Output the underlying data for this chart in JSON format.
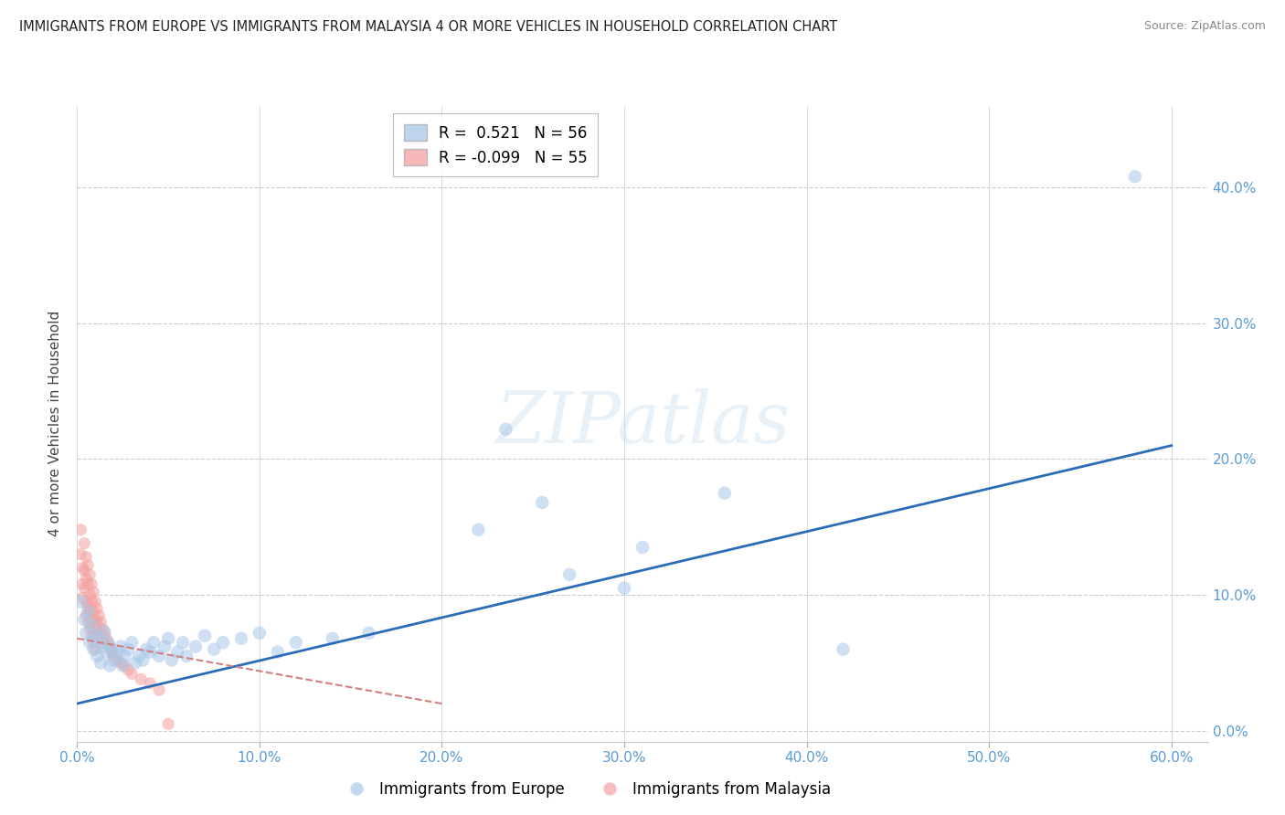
{
  "title": "IMMIGRANTS FROM EUROPE VS IMMIGRANTS FROM MALAYSIA 4 OR MORE VEHICLES IN HOUSEHOLD CORRELATION CHART",
  "source": "Source: ZipAtlas.com",
  "ylabel": "4 or more Vehicles in Household",
  "xlim": [
    0.0,
    0.62
  ],
  "ylim": [
    -0.008,
    0.46
  ],
  "xticks": [
    0.0,
    0.1,
    0.2,
    0.3,
    0.4,
    0.5,
    0.6
  ],
  "xtick_labels": [
    "0.0%",
    "10.0%",
    "20.0%",
    "30.0%",
    "40.0%",
    "50.0%",
    "60.0%"
  ],
  "yticks": [
    0.0,
    0.1,
    0.2,
    0.3,
    0.4
  ],
  "ytick_labels": [
    "0.0%",
    "10.0%",
    "20.0%",
    "30.0%",
    "40.0%"
  ],
  "legend_europe_r": "0.521",
  "legend_europe_n": "56",
  "legend_malaysia_r": "-0.099",
  "legend_malaysia_n": "55",
  "europe_color": "#a8c8e8",
  "malaysia_color": "#f4a0a0",
  "europe_line_color": "#2b6cb8",
  "malaysia_line_color": "#d08080",
  "tick_color": "#5b9bd5",
  "watermark": "ZIPatlas",
  "blue_scatter": [
    [
      0.002,
      0.095
    ],
    [
      0.004,
      0.082
    ],
    [
      0.005,
      0.072
    ],
    [
      0.006,
      0.088
    ],
    [
      0.007,
      0.065
    ],
    [
      0.008,
      0.078
    ],
    [
      0.009,
      0.06
    ],
    [
      0.01,
      0.07
    ],
    [
      0.011,
      0.055
    ],
    [
      0.012,
      0.068
    ],
    [
      0.013,
      0.05
    ],
    [
      0.014,
      0.062
    ],
    [
      0.015,
      0.073
    ],
    [
      0.016,
      0.058
    ],
    [
      0.017,
      0.065
    ],
    [
      0.018,
      0.048
    ],
    [
      0.019,
      0.06
    ],
    [
      0.02,
      0.052
    ],
    [
      0.022,
      0.057
    ],
    [
      0.024,
      0.062
    ],
    [
      0.025,
      0.048
    ],
    [
      0.026,
      0.055
    ],
    [
      0.028,
      0.06
    ],
    [
      0.03,
      0.065
    ],
    [
      0.032,
      0.05
    ],
    [
      0.034,
      0.055
    ],
    [
      0.036,
      0.052
    ],
    [
      0.038,
      0.06
    ],
    [
      0.04,
      0.058
    ],
    [
      0.042,
      0.065
    ],
    [
      0.045,
      0.055
    ],
    [
      0.048,
      0.062
    ],
    [
      0.05,
      0.068
    ],
    [
      0.052,
      0.052
    ],
    [
      0.055,
      0.058
    ],
    [
      0.058,
      0.065
    ],
    [
      0.06,
      0.055
    ],
    [
      0.065,
      0.062
    ],
    [
      0.07,
      0.07
    ],
    [
      0.075,
      0.06
    ],
    [
      0.08,
      0.065
    ],
    [
      0.09,
      0.068
    ],
    [
      0.1,
      0.072
    ],
    [
      0.11,
      0.058
    ],
    [
      0.12,
      0.065
    ],
    [
      0.14,
      0.068
    ],
    [
      0.16,
      0.072
    ],
    [
      0.22,
      0.148
    ],
    [
      0.235,
      0.222
    ],
    [
      0.255,
      0.168
    ],
    [
      0.27,
      0.115
    ],
    [
      0.3,
      0.105
    ],
    [
      0.31,
      0.135
    ],
    [
      0.355,
      0.175
    ],
    [
      0.42,
      0.06
    ],
    [
      0.58,
      0.408
    ]
  ],
  "pink_scatter": [
    [
      0.002,
      0.148
    ],
    [
      0.002,
      0.13
    ],
    [
      0.003,
      0.12
    ],
    [
      0.003,
      0.108
    ],
    [
      0.003,
      0.098
    ],
    [
      0.004,
      0.138
    ],
    [
      0.004,
      0.118
    ],
    [
      0.004,
      0.105
    ],
    [
      0.005,
      0.128
    ],
    [
      0.005,
      0.112
    ],
    [
      0.005,
      0.095
    ],
    [
      0.005,
      0.085
    ],
    [
      0.006,
      0.122
    ],
    [
      0.006,
      0.108
    ],
    [
      0.006,
      0.092
    ],
    [
      0.006,
      0.08
    ],
    [
      0.007,
      0.115
    ],
    [
      0.007,
      0.1
    ],
    [
      0.007,
      0.088
    ],
    [
      0.007,
      0.075
    ],
    [
      0.008,
      0.108
    ],
    [
      0.008,
      0.095
    ],
    [
      0.008,
      0.082
    ],
    [
      0.008,
      0.07
    ],
    [
      0.009,
      0.102
    ],
    [
      0.009,
      0.088
    ],
    [
      0.009,
      0.075
    ],
    [
      0.009,
      0.065
    ],
    [
      0.01,
      0.095
    ],
    [
      0.01,
      0.082
    ],
    [
      0.01,
      0.07
    ],
    [
      0.01,
      0.06
    ],
    [
      0.011,
      0.09
    ],
    [
      0.011,
      0.078
    ],
    [
      0.012,
      0.085
    ],
    [
      0.012,
      0.072
    ],
    [
      0.013,
      0.08
    ],
    [
      0.013,
      0.068
    ],
    [
      0.014,
      0.075
    ],
    [
      0.014,
      0.065
    ],
    [
      0.015,
      0.072
    ],
    [
      0.016,
      0.068
    ],
    [
      0.017,
      0.065
    ],
    [
      0.018,
      0.062
    ],
    [
      0.019,
      0.058
    ],
    [
      0.02,
      0.055
    ],
    [
      0.022,
      0.052
    ],
    [
      0.024,
      0.05
    ],
    [
      0.026,
      0.048
    ],
    [
      0.028,
      0.045
    ],
    [
      0.03,
      0.042
    ],
    [
      0.035,
      0.038
    ],
    [
      0.04,
      0.035
    ],
    [
      0.045,
      0.03
    ],
    [
      0.05,
      0.005
    ]
  ],
  "blue_line_x": [
    0.0,
    0.6
  ],
  "blue_line_y": [
    0.02,
    0.21
  ],
  "pink_line_x": [
    0.0,
    0.2
  ],
  "pink_line_y": [
    0.068,
    0.02
  ]
}
